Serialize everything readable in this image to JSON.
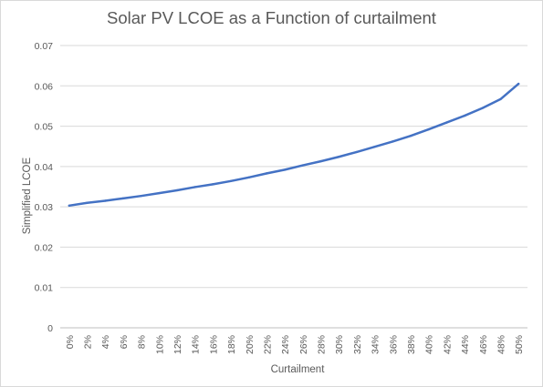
{
  "chart_data": {
    "type": "line",
    "title": "Solar PV LCOE as a Function of curtailment",
    "xlabel": "Curtailment",
    "ylabel": "Simplified LCOE",
    "ylim": [
      0,
      0.07
    ],
    "yticks": [
      "0",
      "0.01",
      "0.02",
      "0.03",
      "0.04",
      "0.05",
      "0.06",
      "0.07"
    ],
    "grid": true,
    "legend": "none",
    "line_color": "#4472c4",
    "categories": [
      "0%",
      "2%",
      "4%",
      "6%",
      "8%",
      "10%",
      "12%",
      "14%",
      "16%",
      "18%",
      "20%",
      "22%",
      "24%",
      "26%",
      "28%",
      "30%",
      "32%",
      "34%",
      "36%",
      "38%",
      "40%",
      "42%",
      "44%",
      "46%",
      "48%",
      "50%"
    ],
    "series": [
      {
        "values": [
          0.0303,
          0.031,
          0.0315,
          0.0321,
          0.0327,
          0.0334,
          0.0341,
          0.0349,
          0.0356,
          0.0364,
          0.0373,
          0.0383,
          0.0392,
          0.0403,
          0.0413,
          0.0424,
          0.0436,
          0.0449,
          0.0462,
          0.0476,
          0.0492,
          0.0509,
          0.0526,
          0.0545,
          0.0567,
          0.0605
        ]
      }
    ]
  }
}
